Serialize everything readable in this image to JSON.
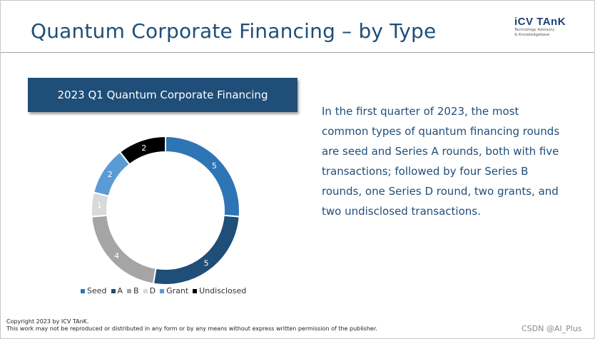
{
  "slide": {
    "title": "Quantum Corporate Financing – by Type",
    "logo_main": "iCV TAnK",
    "logo_sub_1": "Technology Advisory",
    "logo_sub_2": "& Knowledgebase",
    "header_box": "2023 Q1 Quantum Corporate Financing",
    "body_text": "In the first quarter of 2023, the most common types of quantum financing rounds are seed and Series A rounds, both with five transactions; followed by four Series B rounds, one Series D round, two grants, and two undisclosed transactions.",
    "footer_line1": "Copyright  2023 by ICV TAnK.",
    "footer_line2": "This work may not be reproduced or distributed in any form or by any means without express written permission of the publisher.",
    "watermark": "CSDN @AI_Plus"
  },
  "chart_data": {
    "type": "pie",
    "title": "2023 Q1 Quantum Corporate Financing",
    "categories": [
      "Seed",
      "A",
      "B",
      "D",
      "Grant",
      "Undisclosed"
    ],
    "values": [
      5,
      5,
      4,
      1,
      2,
      2
    ],
    "colors": [
      "#2e75b6",
      "#1f4e79",
      "#a5a5a5",
      "#d9d9d9",
      "#5b9bd5",
      "#000000"
    ],
    "label_colors": [
      "#ffffff",
      "#ffffff",
      "#ffffff",
      "#ffffff",
      "#ffffff",
      "#ffffff"
    ],
    "donut": true,
    "legend_position": "bottom"
  }
}
